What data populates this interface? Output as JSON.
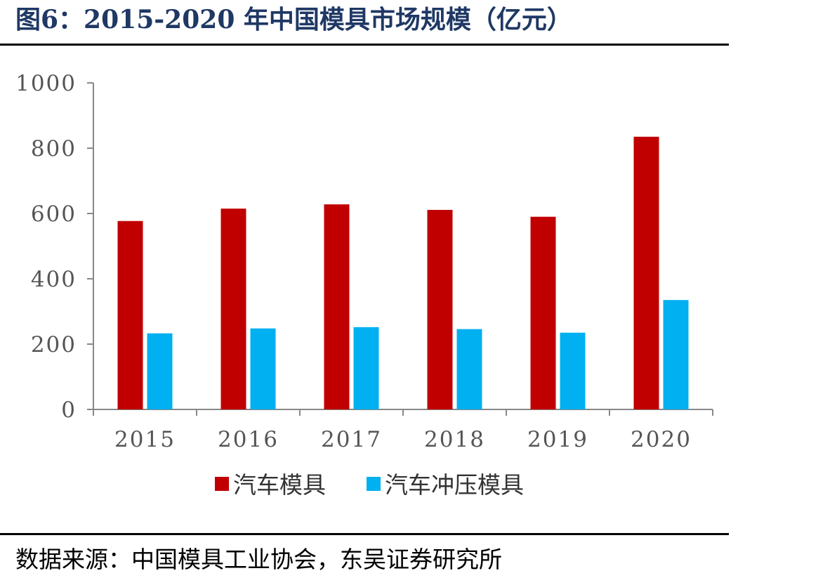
{
  "figure": {
    "title": "图6：2015-2020 年中国模具市场规模（亿元）",
    "source": "数据来源：中国模具工业协会，东吴证券研究所"
  },
  "chart_data": {
    "type": "bar",
    "title": "",
    "xlabel": "",
    "ylabel": "",
    "categories": [
      "2015",
      "2016",
      "2017",
      "2018",
      "2019",
      "2020"
    ],
    "series": [
      {
        "name": "汽车模具",
        "color": "#c00000",
        "values": [
          577,
          615,
          628,
          611,
          590,
          835
        ]
      },
      {
        "name": "汽车冲压模具",
        "color": "#00b0f0",
        "values": [
          233,
          248,
          252,
          246,
          235,
          335
        ]
      }
    ],
    "ylim": [
      0,
      1000
    ],
    "yticks": [
      0,
      200,
      400,
      600,
      800,
      1000
    ],
    "grid": false,
    "legend_position": "bottom"
  }
}
